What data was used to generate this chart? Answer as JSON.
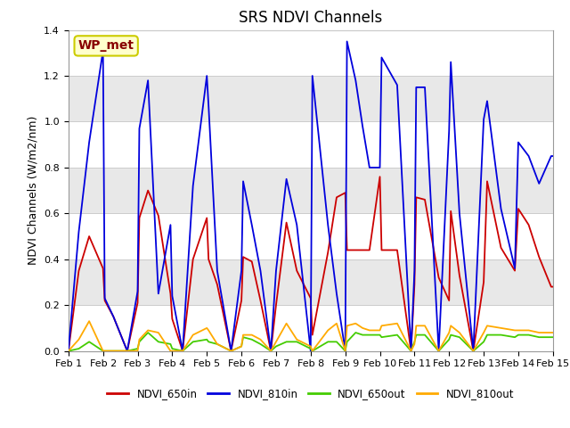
{
  "title": "SRS NDVI Channels",
  "ylabel": "NDVI Channels (W/m2/nm)",
  "xlabel": "",
  "xlim": [
    1,
    15
  ],
  "ylim": [
    0,
    1.4
  ],
  "xtick_labels": [
    "Feb 1",
    "Feb 2",
    "Feb 3",
    "Feb 4",
    "Feb 5",
    "Feb 6",
    "Feb 7",
    "Feb 8",
    "Feb 9",
    "Feb 10",
    "Feb 11",
    "Feb 12",
    "Feb 13",
    "Feb 14",
    "Feb 15"
  ],
  "xtick_positions": [
    1,
    2,
    3,
    4,
    5,
    6,
    7,
    8,
    9,
    10,
    11,
    12,
    13,
    14,
    15
  ],
  "ytick_positions": [
    0.0,
    0.2,
    0.4,
    0.6,
    0.8,
    1.0,
    1.2,
    1.4
  ],
  "series": {
    "NDVI_650in": {
      "color": "#cc0000",
      "x": [
        1.0,
        1.3,
        1.6,
        2.0,
        2.05,
        2.3,
        2.7,
        3.0,
        3.05,
        3.3,
        3.6,
        3.95,
        4.0,
        4.3,
        4.6,
        5.0,
        5.05,
        5.3,
        5.7,
        6.0,
        6.05,
        6.3,
        6.55,
        6.85,
        7.0,
        7.3,
        7.6,
        8.0,
        8.05,
        8.5,
        8.75,
        9.0,
        9.05,
        9.3,
        9.5,
        9.7,
        10.0,
        10.05,
        10.5,
        10.9,
        11.0,
        11.05,
        11.3,
        11.7,
        12.0,
        12.05,
        12.3,
        12.7,
        13.0,
        13.1,
        13.5,
        13.9,
        14.0,
        14.3,
        14.6,
        14.95,
        15.0
      ],
      "y": [
        0.0,
        0.35,
        0.5,
        0.36,
        0.22,
        0.15,
        0.0,
        0.21,
        0.58,
        0.7,
        0.59,
        0.25,
        0.14,
        0.0,
        0.4,
        0.58,
        0.4,
        0.29,
        0.0,
        0.22,
        0.41,
        0.39,
        0.22,
        0.0,
        0.2,
        0.56,
        0.35,
        0.23,
        0.07,
        0.43,
        0.67,
        0.69,
        0.44,
        0.44,
        0.44,
        0.44,
        0.76,
        0.44,
        0.44,
        0.0,
        0.29,
        0.67,
        0.66,
        0.32,
        0.22,
        0.61,
        0.33,
        0.0,
        0.3,
        0.74,
        0.45,
        0.35,
        0.62,
        0.55,
        0.41,
        0.28,
        0.28
      ]
    },
    "NDVI_810in": {
      "color": "#0000dd",
      "x": [
        1.0,
        1.3,
        1.6,
        2.0,
        2.05,
        2.3,
        2.7,
        3.0,
        3.05,
        3.3,
        3.6,
        3.95,
        4.0,
        4.3,
        4.6,
        5.0,
        5.05,
        5.3,
        5.7,
        6.0,
        6.05,
        6.3,
        6.55,
        6.85,
        7.0,
        7.3,
        7.6,
        8.0,
        8.05,
        8.5,
        8.75,
        9.0,
        9.05,
        9.3,
        9.5,
        9.7,
        10.0,
        10.05,
        10.5,
        10.9,
        11.0,
        11.05,
        11.3,
        11.7,
        12.0,
        12.05,
        12.3,
        12.7,
        13.0,
        13.1,
        13.5,
        13.9,
        14.0,
        14.3,
        14.6,
        14.95,
        15.0
      ],
      "y": [
        0.0,
        0.52,
        0.91,
        1.31,
        0.23,
        0.15,
        0.0,
        0.26,
        0.97,
        1.18,
        0.25,
        0.55,
        0.24,
        0.0,
        0.72,
        1.2,
        1.07,
        0.35,
        0.0,
        0.35,
        0.74,
        0.55,
        0.35,
        0.0,
        0.35,
        0.75,
        0.55,
        0.0,
        1.2,
        0.55,
        0.25,
        0.0,
        1.35,
        1.18,
        0.98,
        0.8,
        0.8,
        1.28,
        1.16,
        0.0,
        0.35,
        1.15,
        1.15,
        0.0,
        0.96,
        1.26,
        0.6,
        0.0,
        1.01,
        1.09,
        0.62,
        0.36,
        0.91,
        0.85,
        0.73,
        0.85,
        0.85
      ]
    },
    "NDVI_650out": {
      "color": "#44cc00",
      "x": [
        1.0,
        1.3,
        1.6,
        2.0,
        2.05,
        2.3,
        2.7,
        3.0,
        3.05,
        3.3,
        3.6,
        3.95,
        4.0,
        4.3,
        4.6,
        5.0,
        5.05,
        5.3,
        5.7,
        6.0,
        6.05,
        6.3,
        6.55,
        6.85,
        7.0,
        7.3,
        7.6,
        8.0,
        8.05,
        8.5,
        8.75,
        9.0,
        9.05,
        9.3,
        9.5,
        9.7,
        10.0,
        10.05,
        10.5,
        10.9,
        11.0,
        11.05,
        11.3,
        11.7,
        12.0,
        12.05,
        12.3,
        12.7,
        13.0,
        13.1,
        13.5,
        13.9,
        14.0,
        14.3,
        14.6,
        14.95,
        15.0
      ],
      "y": [
        0.0,
        0.01,
        0.04,
        0.0,
        0.0,
        0.0,
        0.0,
        0.01,
        0.04,
        0.08,
        0.04,
        0.03,
        0.01,
        0.0,
        0.04,
        0.05,
        0.04,
        0.03,
        0.0,
        0.02,
        0.06,
        0.05,
        0.03,
        0.0,
        0.02,
        0.04,
        0.04,
        0.01,
        0.0,
        0.04,
        0.04,
        0.0,
        0.04,
        0.08,
        0.07,
        0.07,
        0.07,
        0.06,
        0.07,
        0.0,
        0.04,
        0.07,
        0.07,
        0.0,
        0.05,
        0.07,
        0.06,
        0.0,
        0.04,
        0.07,
        0.07,
        0.06,
        0.07,
        0.07,
        0.06,
        0.06,
        0.06
      ]
    },
    "NDVI_810out": {
      "color": "#ffaa00",
      "x": [
        1.0,
        1.3,
        1.6,
        2.0,
        2.05,
        2.3,
        2.7,
        3.0,
        3.05,
        3.3,
        3.6,
        3.95,
        4.0,
        4.3,
        4.6,
        5.0,
        5.05,
        5.3,
        5.7,
        6.0,
        6.05,
        6.3,
        6.55,
        6.85,
        7.0,
        7.3,
        7.6,
        8.0,
        8.05,
        8.5,
        8.75,
        9.0,
        9.05,
        9.3,
        9.5,
        9.7,
        10.0,
        10.05,
        10.5,
        10.9,
        11.0,
        11.05,
        11.3,
        11.7,
        12.0,
        12.05,
        12.3,
        12.7,
        13.0,
        13.1,
        13.5,
        13.9,
        14.0,
        14.3,
        14.6,
        14.95,
        15.0
      ],
      "y": [
        0.0,
        0.05,
        0.13,
        0.0,
        0.0,
        0.0,
        0.0,
        0.0,
        0.05,
        0.09,
        0.08,
        0.0,
        0.0,
        0.0,
        0.07,
        0.1,
        0.09,
        0.03,
        0.0,
        0.02,
        0.07,
        0.07,
        0.05,
        0.0,
        0.04,
        0.12,
        0.05,
        0.02,
        0.0,
        0.09,
        0.12,
        0.0,
        0.11,
        0.12,
        0.1,
        0.09,
        0.09,
        0.11,
        0.12,
        0.0,
        0.03,
        0.11,
        0.11,
        0.0,
        0.08,
        0.11,
        0.08,
        0.0,
        0.08,
        0.11,
        0.1,
        0.09,
        0.09,
        0.09,
        0.08,
        0.08,
        0.08
      ]
    }
  },
  "legend_entries": [
    {
      "label": "NDVI_650in",
      "color": "#cc0000"
    },
    {
      "label": "NDVI_810in",
      "color": "#0000dd"
    },
    {
      "label": "NDVI_650out",
      "color": "#44cc00"
    },
    {
      "label": "NDVI_810out",
      "color": "#ffaa00"
    }
  ],
  "annotation_box": {
    "text": "WP_met",
    "text_color": "#880000",
    "box_facecolor": "#ffffcc",
    "box_edgecolor": "#cccc00"
  },
  "plot_bg_bands": [
    {
      "ymin": 0.0,
      "ymax": 0.2,
      "color": "#ffffff"
    },
    {
      "ymin": 0.2,
      "ymax": 0.4,
      "color": "#e8e8e8"
    },
    {
      "ymin": 0.4,
      "ymax": 0.6,
      "color": "#ffffff"
    },
    {
      "ymin": 0.6,
      "ymax": 0.8,
      "color": "#e8e8e8"
    },
    {
      "ymin": 0.8,
      "ymax": 1.0,
      "color": "#ffffff"
    },
    {
      "ymin": 1.0,
      "ymax": 1.2,
      "color": "#e8e8e8"
    },
    {
      "ymin": 1.2,
      "ymax": 1.4,
      "color": "#ffffff"
    }
  ],
  "fig_bg_color": "#ffffff",
  "grid_color": "#cccccc",
  "title_fontsize": 12,
  "ylabel_fontsize": 9,
  "tick_fontsize": 8
}
